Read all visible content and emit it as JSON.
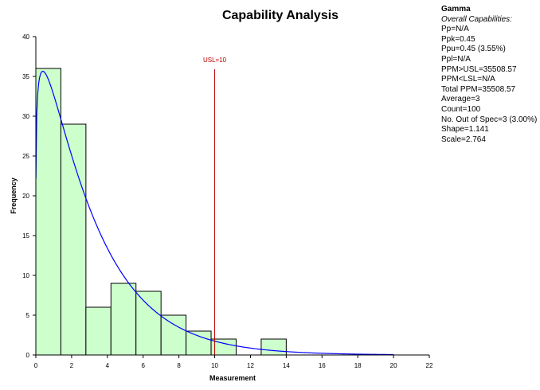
{
  "chart_data": {
    "type": "bar",
    "title": "Capability Analysis",
    "xlabel": "Measurement",
    "ylabel": "Frequency",
    "xlim": [
      0,
      22
    ],
    "ylim": [
      0,
      40
    ],
    "x_ticks": [
      0,
      2,
      4,
      6,
      8,
      10,
      12,
      14,
      16,
      18,
      20,
      22
    ],
    "y_ticks": [
      0,
      5,
      10,
      15,
      20,
      25,
      30,
      35,
      40
    ],
    "bins": [
      {
        "start": 0.0,
        "end": 1.4,
        "count": 36
      },
      {
        "start": 1.4,
        "end": 2.8,
        "count": 29
      },
      {
        "start": 2.8,
        "end": 4.2,
        "count": 6
      },
      {
        "start": 4.2,
        "end": 5.6,
        "count": 9
      },
      {
        "start": 5.6,
        "end": 7.0,
        "count": 8
      },
      {
        "start": 7.0,
        "end": 8.4,
        "count": 5
      },
      {
        "start": 8.4,
        "end": 9.8,
        "count": 3
      },
      {
        "start": 9.8,
        "end": 11.2,
        "count": 2
      },
      {
        "start": 11.2,
        "end": 12.6,
        "count": 0
      },
      {
        "start": 12.6,
        "end": 14.0,
        "count": 2
      }
    ],
    "fit_curve": {
      "name": "Gamma fit",
      "shape": 1.141,
      "scale": 2.764,
      "n": 100,
      "bin_width": 1.4,
      "x_min": 0.0,
      "x_max": 20.0
    },
    "spec_limits": [
      {
        "name": "USL",
        "value": 10,
        "label": "USL=10"
      }
    ],
    "colors": {
      "bar_fill": "#ccffcc",
      "bar_stroke": "#000000",
      "curve": "#0000ff",
      "usl": "#c00000",
      "usl_label": "#c00000"
    }
  },
  "stats_panel": {
    "heading": "Gamma",
    "subheading": "Overall Capabilities:",
    "lines": [
      "Pp=N/A",
      "Ppk=0.45",
      "Ppu=0.45 (3.55%)",
      "Ppl=N/A",
      "PPM>USL=35508.57",
      "PPM<LSL=N/A",
      "Total PPM=35508.57",
      "Average=3",
      "Count=100",
      "No. Out of Spec=3 (3.00%)",
      "Shape=1.141",
      "Scale=2.764"
    ]
  }
}
